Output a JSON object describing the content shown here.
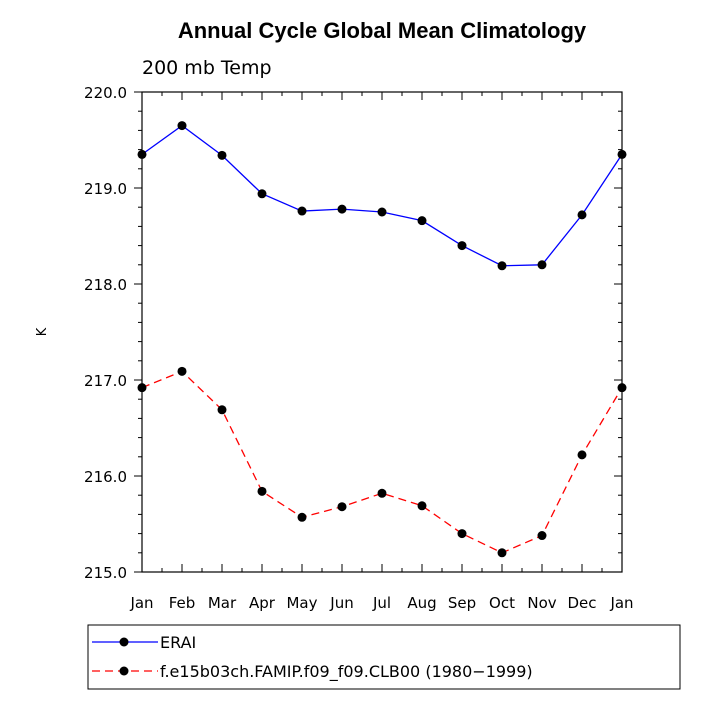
{
  "chart_data": {
    "type": "line",
    "title": "Annual Cycle Global Mean Climatology",
    "subtitle": "200 mb Temp",
    "xlabel": "",
    "ylabel": "K",
    "categories": [
      "Jan",
      "Feb",
      "Mar",
      "Apr",
      "May",
      "Jun",
      "Jul",
      "Aug",
      "Sep",
      "Oct",
      "Nov",
      "Dec",
      "Jan"
    ],
    "ylim": [
      215.0,
      220.0
    ],
    "yticks": [
      "215.0",
      "216.0",
      "217.0",
      "218.0",
      "219.0",
      "220.0"
    ],
    "yminor_step": 0.2,
    "legend_position": "bottom-left",
    "series": [
      {
        "name": "ERAI",
        "color": "#0000ff",
        "dash": "solid",
        "values": [
          219.35,
          219.65,
          219.34,
          218.94,
          218.76,
          218.78,
          218.75,
          218.66,
          218.4,
          218.19,
          218.2,
          218.72,
          219.35
        ]
      },
      {
        "name": "f.e15b03ch.FAMIP.f09_f09.CLB00 (1980−1999)",
        "color": "#ff0000",
        "dash": "dashed",
        "values": [
          216.92,
          217.09,
          216.69,
          215.84,
          215.57,
          215.68,
          215.82,
          215.69,
          215.4,
          215.2,
          215.38,
          216.22,
          216.92
        ]
      }
    ]
  }
}
